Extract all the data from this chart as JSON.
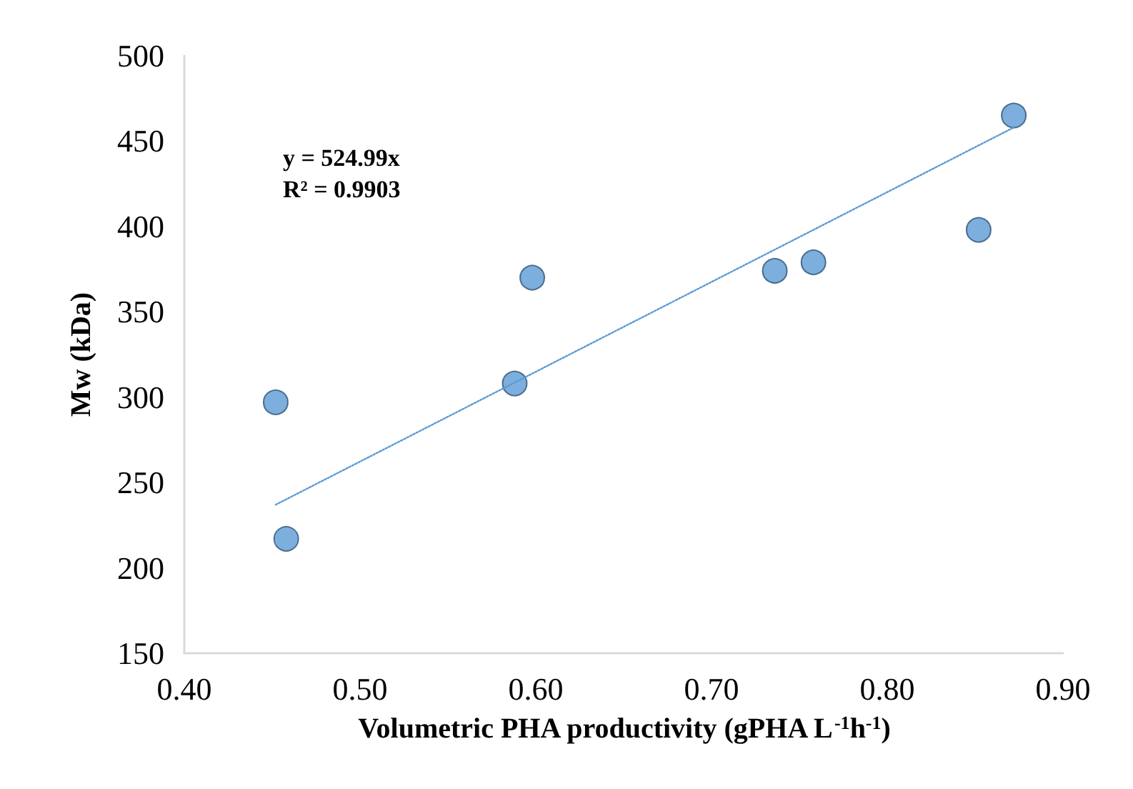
{
  "chart_data": {
    "type": "scatter",
    "xlabel": "Volumetric PHA productivity (gPHA L$^{-1}$h$^{-1}$)",
    "ylabel": "Mw (kDa)",
    "x": [
      0.452,
      0.458,
      0.588,
      0.598,
      0.736,
      0.758,
      0.852,
      0.872
    ],
    "series": [
      {
        "color": "#5b9bd5",
        "values": [
          297,
          217,
          308,
          370,
          374,
          379,
          398,
          465
        ]
      },
      {
        "type": "line",
        "color": "#5b9bd5",
        "line_style": "dotted",
        "marker": "none",
        "x": [
          0.452,
          0.872
        ],
        "values": [
          237,
          458
        ]
      }
    ],
    "annotations": [
      "y = 524.99x",
      "R² = 0.9903"
    ],
    "marker": "circle",
    "grid": false,
    "xlim": [
      0.4,
      0.9
    ],
    "xticks": [
      {
        "value": 0.4,
        "label": "0.40"
      },
      {
        "value": 0.5,
        "label": "0.50"
      },
      {
        "value": 0.6,
        "label": "0.60"
      },
      {
        "value": 0.7,
        "label": "0.70"
      },
      {
        "value": 0.8,
        "label": "0.80"
      },
      {
        "value": 0.9,
        "label": "0.90"
      }
    ],
    "ylim": [
      150,
      500
    ],
    "yticks": [
      150,
      200,
      250,
      300,
      350,
      400,
      450,
      500
    ]
  }
}
